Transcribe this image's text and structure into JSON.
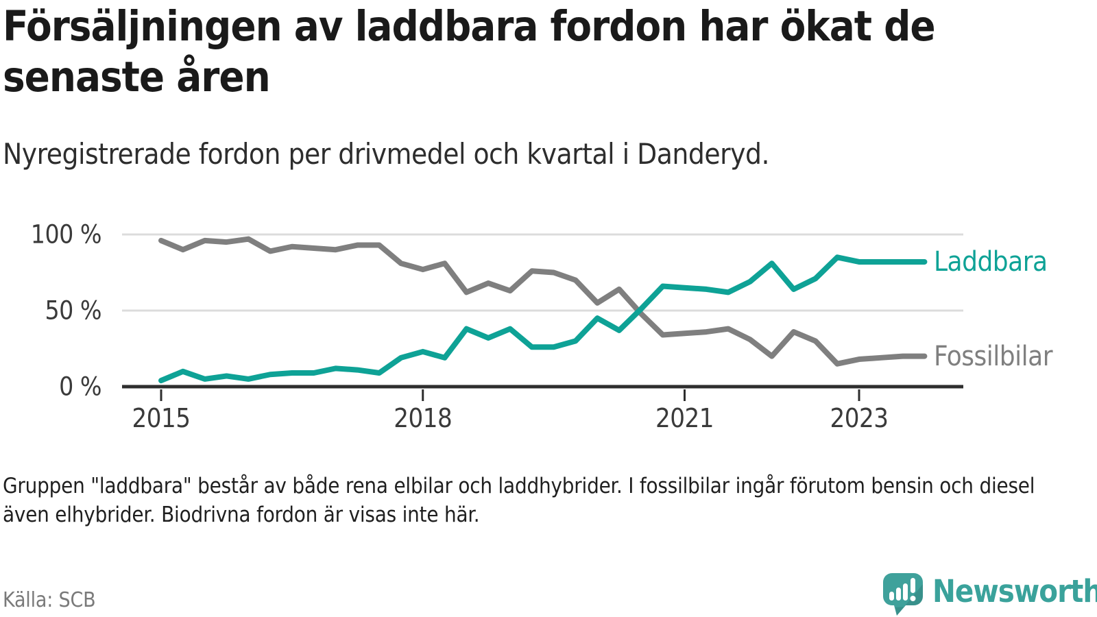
{
  "header": {
    "title": "Försäljningen av laddbara fordon har ökat de senaste åren",
    "subtitle": "Nyregistrerade fordon per drivmedel och kvartal i Danderyd."
  },
  "chart_data": {
    "type": "line",
    "x_unit": "quarter",
    "x_start": "2015-Q1",
    "x_end": "2023-Q4",
    "ylim": [
      0,
      100
    ],
    "grid": "horizontal",
    "legend_position": "right-end-of-lines",
    "y_ticks": [
      {
        "label": "0 %",
        "value": 0
      },
      {
        "label": "50 %",
        "value": 50
      },
      {
        "label": "100 %",
        "value": 100
      }
    ],
    "x_ticks": [
      {
        "label": "2015",
        "index": 0
      },
      {
        "label": "2018",
        "index": 12
      },
      {
        "label": "2021",
        "index": 24
      },
      {
        "label": "2023",
        "index": 32
      }
    ],
    "series": [
      {
        "name": "Laddbara",
        "color": "#0ea296",
        "values": [
          4,
          10,
          5,
          7,
          5,
          8,
          9,
          9,
          12,
          11,
          9,
          19,
          23,
          19,
          38,
          32,
          38,
          26,
          26,
          30,
          45,
          37,
          51,
          66,
          65,
          64,
          62,
          69,
          81,
          64,
          71,
          85,
          82,
          82,
          82,
          82
        ]
      },
      {
        "name": "Fossilbilar",
        "color": "#7f7f7f",
        "values": [
          96,
          90,
          96,
          95,
          97,
          89,
          92,
          91,
          90,
          93,
          93,
          81,
          77,
          81,
          62,
          68,
          63,
          76,
          75,
          70,
          55,
          64,
          48,
          34,
          35,
          36,
          38,
          31,
          20,
          36,
          30,
          15,
          18,
          19,
          20,
          20
        ]
      }
    ]
  },
  "footnote": "Gruppen \"laddbara\" består av både rena elbilar och laddhybrider. I fossilbilar ingår förutom bensin och diesel även elhybrider. Biodrivna fordon är visas inte här.",
  "source": "Källa: SCB",
  "brand": {
    "name": "Newsworthy",
    "color": "#3aa29b"
  },
  "colors": {
    "background": "#ffffff",
    "axis": "#2e2e2e",
    "grid": "#dcdcdc",
    "tick_label": "#3a3a3a",
    "title": "#1a1a1a"
  }
}
